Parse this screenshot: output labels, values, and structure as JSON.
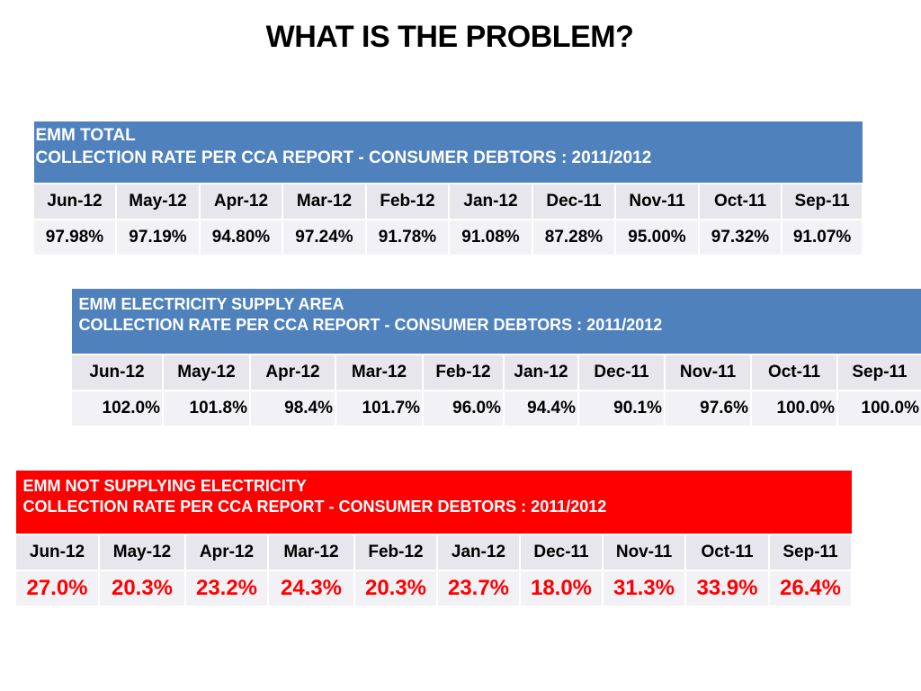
{
  "title": "WHAT IS THE PROBLEM?",
  "months": [
    "Jun-12",
    "May-12",
    "Apr-12",
    "Mar-12",
    "Feb-12",
    "Jan-12",
    "Dec-11",
    "Nov-11",
    "Oct-11",
    "Sep-11"
  ],
  "tables": [
    {
      "header_line1": "EMM TOTAL",
      "header_line2": "COLLECTION RATE PER CCA REPORT - CONSUMER DEBTORS : 2011/2012",
      "header_color": "#4f81bd",
      "values": [
        "97.98%",
        "97.19%",
        "94.80%",
        "97.24%",
        "91.78%",
        "91.08%",
        "87.28%",
        "95.00%",
        "97.32%",
        "91.07%"
      ]
    },
    {
      "header_line1": "EMM ELECTRICITY SUPPLY AREA",
      "header_line2": "COLLECTION RATE PER CCA REPORT - CONSUMER DEBTORS : 2011/2012",
      "header_color": "#4f81bd",
      "values": [
        "102.0%",
        "101.8%",
        "98.4%",
        "101.7%",
        "96.0%",
        "94.4%",
        "90.1%",
        "97.6%",
        "100.0%",
        "100.0%"
      ]
    },
    {
      "header_line1": "EMM NOT SUPPLYING ELECTRICITY",
      "header_line2": "COLLECTION RATE PER CCA REPORT - CONSUMER DEBTORS : 2011/2012",
      "header_color": "#ff0000",
      "value_color": "#ff0000",
      "values": [
        "27.0%",
        "20.3%",
        "23.2%",
        "24.3%",
        "20.3%",
        "23.7%",
        "18.0%",
        "31.3%",
        "33.9%",
        "26.4%"
      ]
    }
  ]
}
